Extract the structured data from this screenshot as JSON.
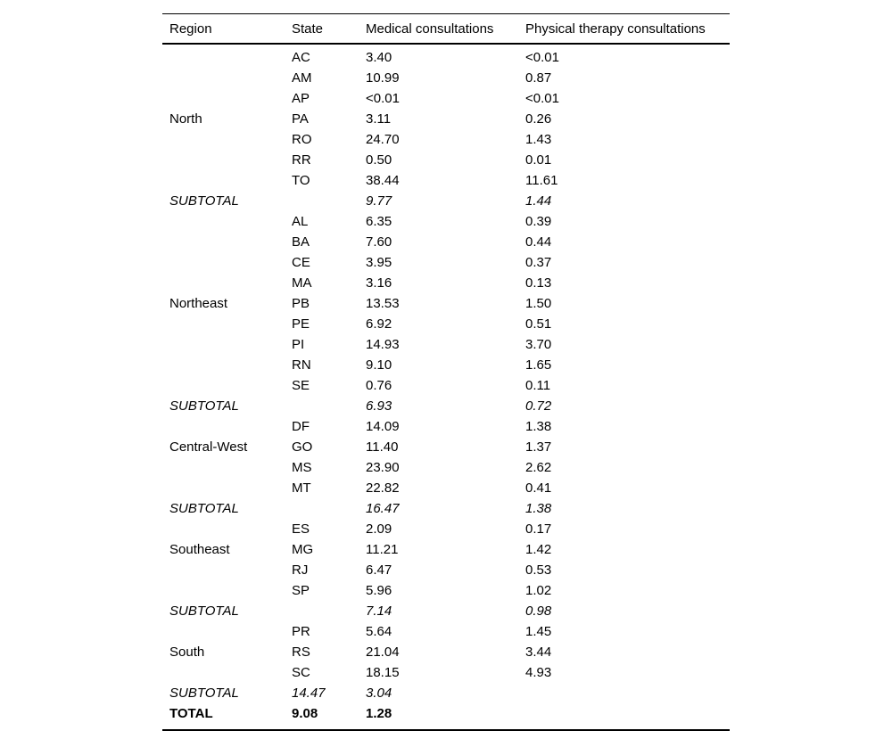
{
  "table": {
    "columns": [
      {
        "key": "region",
        "label": "Region"
      },
      {
        "key": "state",
        "label": "State"
      },
      {
        "key": "medical",
        "label": "Medical consultations"
      },
      {
        "key": "physical",
        "label": "Physical therapy consultations"
      }
    ],
    "rows": [
      {
        "type": "data",
        "region": "",
        "state": "AC",
        "medical": "3.40",
        "physical": "<0.01"
      },
      {
        "type": "data",
        "region": "",
        "state": "AM",
        "medical": "10.99",
        "physical": "0.87"
      },
      {
        "type": "data",
        "region": "",
        "state": "AP",
        "medical": "<0.01",
        "physical": "<0.01"
      },
      {
        "type": "data",
        "region": "North",
        "state": "PA",
        "medical": "3.11",
        "physical": "0.26"
      },
      {
        "type": "data",
        "region": "",
        "state": "RO",
        "medical": "24.70",
        "physical": "1.43"
      },
      {
        "type": "data",
        "region": "",
        "state": "RR",
        "medical": "0.50",
        "physical": "0.01"
      },
      {
        "type": "data",
        "region": "",
        "state": "TO",
        "medical": "38.44",
        "physical": "11.61"
      },
      {
        "type": "subtotal",
        "region": "SUBTOTAL",
        "state": "",
        "medical": "9.77",
        "physical": "1.44"
      },
      {
        "type": "data",
        "region": "",
        "state": "AL",
        "medical": "6.35",
        "physical": "0.39"
      },
      {
        "type": "data",
        "region": "",
        "state": "BA",
        "medical": "7.60",
        "physical": "0.44"
      },
      {
        "type": "data",
        "region": "",
        "state": "CE",
        "medical": "3.95",
        "physical": "0.37"
      },
      {
        "type": "data",
        "region": "",
        "state": "MA",
        "medical": "3.16",
        "physical": "0.13"
      },
      {
        "type": "data",
        "region": "Northeast",
        "state": "PB",
        "medical": "13.53",
        "physical": "1.50"
      },
      {
        "type": "data",
        "region": "",
        "state": "PE",
        "medical": "6.92",
        "physical": "0.51"
      },
      {
        "type": "data",
        "region": "",
        "state": "PI",
        "medical": "14.93",
        "physical": "3.70"
      },
      {
        "type": "data",
        "region": "",
        "state": "RN",
        "medical": "9.10",
        "physical": "1.65"
      },
      {
        "type": "data",
        "region": "",
        "state": "SE",
        "medical": "0.76",
        "physical": "0.11"
      },
      {
        "type": "subtotal",
        "region": "SUBTOTAL",
        "state": "",
        "medical": "6.93",
        "physical": "0.72"
      },
      {
        "type": "data",
        "region": "",
        "state": "DF",
        "medical": "14.09",
        "physical": "1.38"
      },
      {
        "type": "data",
        "region": "Central-West",
        "state": "GO",
        "medical": "11.40",
        "physical": "1.37"
      },
      {
        "type": "data",
        "region": "",
        "state": "MS",
        "medical": "23.90",
        "physical": "2.62"
      },
      {
        "type": "data",
        "region": "",
        "state": "MT",
        "medical": "22.82",
        "physical": "0.41"
      },
      {
        "type": "subtotal",
        "region": "SUBTOTAL",
        "state": "",
        "medical": "16.47",
        "physical": "1.38"
      },
      {
        "type": "data",
        "region": "",
        "state": "ES",
        "medical": "2.09",
        "physical": "0.17"
      },
      {
        "type": "data",
        "region": "Southeast",
        "state": "MG",
        "medical": "11.21",
        "physical": "1.42"
      },
      {
        "type": "data",
        "region": "",
        "state": "RJ",
        "medical": "6.47",
        "physical": "0.53"
      },
      {
        "type": "data",
        "region": "",
        "state": "SP",
        "medical": "5.96",
        "physical": "1.02"
      },
      {
        "type": "subtotal",
        "region": "SUBTOTAL",
        "state": "",
        "medical": "7.14",
        "physical": "0.98"
      },
      {
        "type": "data",
        "region": "",
        "state": "PR",
        "medical": "5.64",
        "physical": "1.45"
      },
      {
        "type": "data",
        "region": "South",
        "state": "RS",
        "medical": "21.04",
        "physical": "3.44"
      },
      {
        "type": "data",
        "region": "",
        "state": "SC",
        "medical": "18.15",
        "physical": "4.93"
      },
      {
        "type": "subtotal",
        "region": "SUBTOTAL",
        "state": "14.47",
        "medical": "3.04",
        "physical": ""
      },
      {
        "type": "total",
        "region": "TOTAL",
        "state": "9.08",
        "medical": "1.28",
        "physical": ""
      }
    ]
  }
}
